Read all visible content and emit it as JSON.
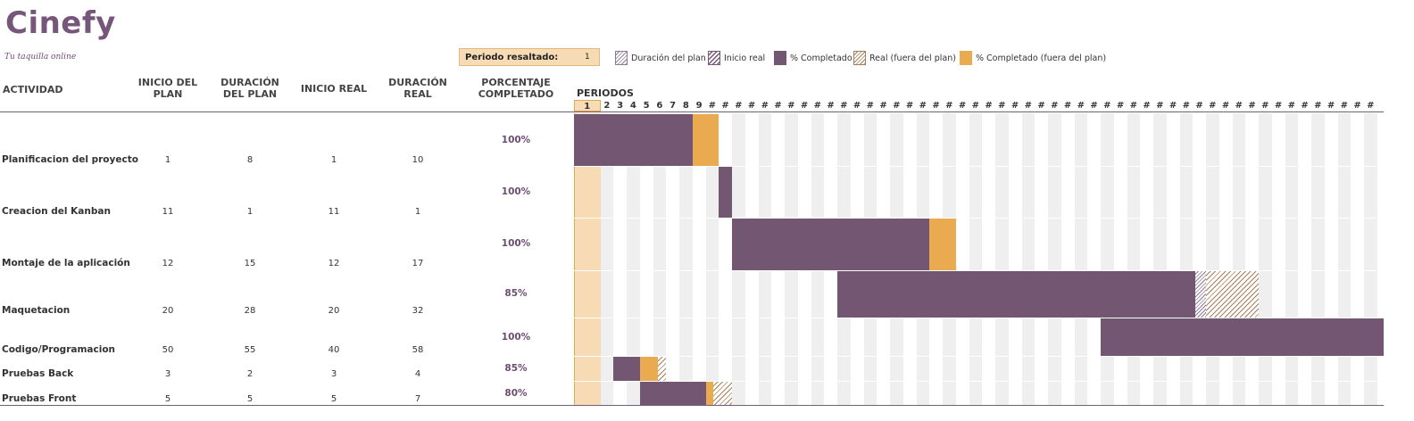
{
  "app": {
    "title": "Cinefy",
    "subtitle": "Tu taquilla online"
  },
  "period_selector": {
    "label": "Periodo resaltado:",
    "value": "1"
  },
  "legend": [
    {
      "label": "Duración del plan",
      "icon": "plan-duration-swatch"
    },
    {
      "label": "Inicio real",
      "icon": "actual-start-swatch"
    },
    {
      "label": "% Completado",
      "icon": "percent-complete-swatch",
      "color": "#735672"
    },
    {
      "label": "Real (fuera del plan)",
      "icon": "actual-beyond-plan-swatch"
    },
    {
      "label": "% Completado (fuera del plan)",
      "icon": "percent-complete-beyond-plan-swatch",
      "color": "#e9aa50"
    }
  ],
  "columns": {
    "actividad": "ACTIVIDAD",
    "inicio_plan": "INICIO DEL PLAN",
    "duracion_plan": "DURACIÓN DEL PLAN",
    "inicio_real": "INICIO REAL",
    "duracion_real": "DURACIÓN REAL",
    "porcentaje": "PORCENTAJE COMPLETADO",
    "periodos": "PERIODOS"
  },
  "period_labels": [
    "1",
    "2",
    "3",
    "4",
    "5",
    "6",
    "7",
    "8",
    "9",
    "#",
    "#",
    "#",
    "#",
    "#",
    "#",
    "#",
    "#",
    "#",
    "#",
    "#",
    "#",
    "#",
    "#",
    "#",
    "#",
    "#",
    "#",
    "#",
    "#",
    "#",
    "#",
    "#",
    "#",
    "#",
    "#",
    "#",
    "#",
    "#",
    "#",
    "#",
    "#",
    "#",
    "#",
    "#",
    "#",
    "#",
    "#",
    "#",
    "#",
    "#",
    "#",
    "#",
    "#",
    "#",
    "#",
    "#",
    "#",
    "#",
    "#",
    "#",
    "#"
  ],
  "activities": [
    {
      "name": "Planificacion del proyecto",
      "inicio_plan": "1",
      "duracion_plan": "8",
      "inicio_real": "1",
      "duracion_real": "10",
      "porcentaje": "100%"
    },
    {
      "name": "Creacion del Kanban",
      "inicio_plan": "11",
      "duracion_plan": "1",
      "inicio_real": "11",
      "duracion_real": "1",
      "porcentaje": "100%"
    },
    {
      "name": "Montaje de la aplicación",
      "inicio_plan": "12",
      "duracion_plan": "15",
      "inicio_real": "12",
      "duracion_real": "17",
      "porcentaje": "100%"
    },
    {
      "name": "Maquetacion",
      "inicio_plan": "20",
      "duracion_plan": "28",
      "inicio_real": "20",
      "duracion_real": "32",
      "porcentaje": "85%"
    },
    {
      "name": "Codigo/Programacion",
      "inicio_plan": "50",
      "duracion_plan": "55",
      "inicio_real": "40",
      "duracion_real": "58",
      "porcentaje": "100%"
    },
    {
      "name": "Pruebas Back",
      "inicio_plan": "3",
      "duracion_plan": "2",
      "inicio_real": "3",
      "duracion_real": "4",
      "porcentaje": "85%"
    },
    {
      "name": "Pruebas Front",
      "inicio_plan": "5",
      "duracion_plan": "5",
      "inicio_real": "5",
      "duracion_real": "7",
      "porcentaje": "80%"
    }
  ]
}
